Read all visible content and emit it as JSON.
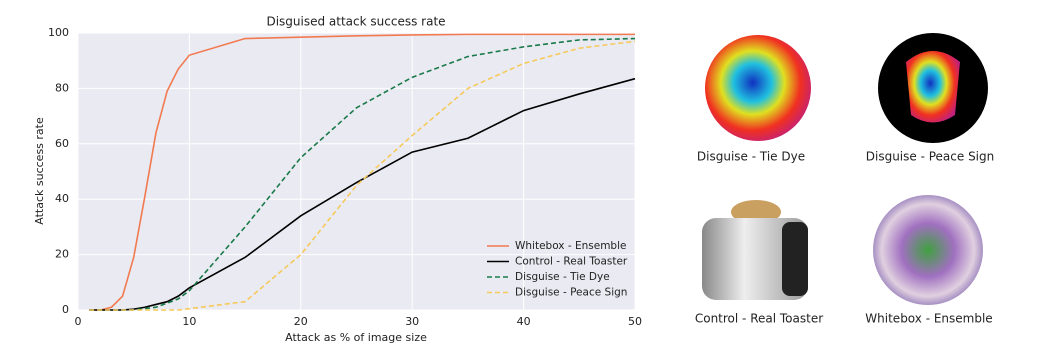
{
  "chart_data": {
    "type": "line",
    "title": "Disguised attack success rate",
    "xlabel": "Attack as % of image size",
    "ylabel": "Attack success rate",
    "x": [
      1,
      2,
      3,
      4,
      5,
      6,
      7,
      8,
      9,
      10,
      15,
      20,
      25,
      30,
      35,
      40,
      45,
      50
    ],
    "series": [
      {
        "name": "Whitebox - Ensemble",
        "color": "#f27a50",
        "dash": false,
        "values": [
          0,
          0,
          1,
          5,
          19,
          41,
          64,
          79,
          87,
          92,
          98,
          98.5,
          99,
          99.3,
          99.5,
          99.5,
          99.5,
          99.5
        ]
      },
      {
        "name": "Control - Real Toaster",
        "color": "#000000",
        "dash": false,
        "values": [
          0,
          0,
          0,
          0,
          0.3,
          1,
          2,
          3,
          5,
          8,
          19,
          34,
          46,
          57,
          62,
          72,
          78,
          83.5
        ]
      },
      {
        "name": "Disguise - Tie Dye",
        "color": "#1a7a4a",
        "dash": true,
        "values": [
          0,
          0,
          0,
          0,
          0,
          0.5,
          1,
          2.5,
          4,
          7,
          30,
          55,
          73,
          84,
          91.5,
          95,
          97.5,
          98
        ]
      },
      {
        "name": "Disguise - Peace Sign",
        "color": "#f6c95b",
        "dash": true,
        "values": [
          0,
          0,
          0,
          0,
          0,
          0,
          0,
          0,
          0,
          0.5,
          3,
          20,
          45,
          63,
          80,
          89,
          94.5,
          97
        ]
      }
    ],
    "xlim": [
      0,
      50
    ],
    "xticks": [
      0,
      10,
      20,
      30,
      40,
      50
    ],
    "ylim": [
      0,
      100
    ],
    "yticks": [
      0,
      20,
      40,
      60,
      80,
      100
    ],
    "grid": true,
    "legend": "lower right"
  },
  "images": [
    {
      "caption": "Disguise - Tie Dye"
    },
    {
      "caption": "Disguise - Peace Sign"
    },
    {
      "caption": "Control - Real Toaster"
    },
    {
      "caption": "Whitebox - Ensemble"
    }
  ]
}
